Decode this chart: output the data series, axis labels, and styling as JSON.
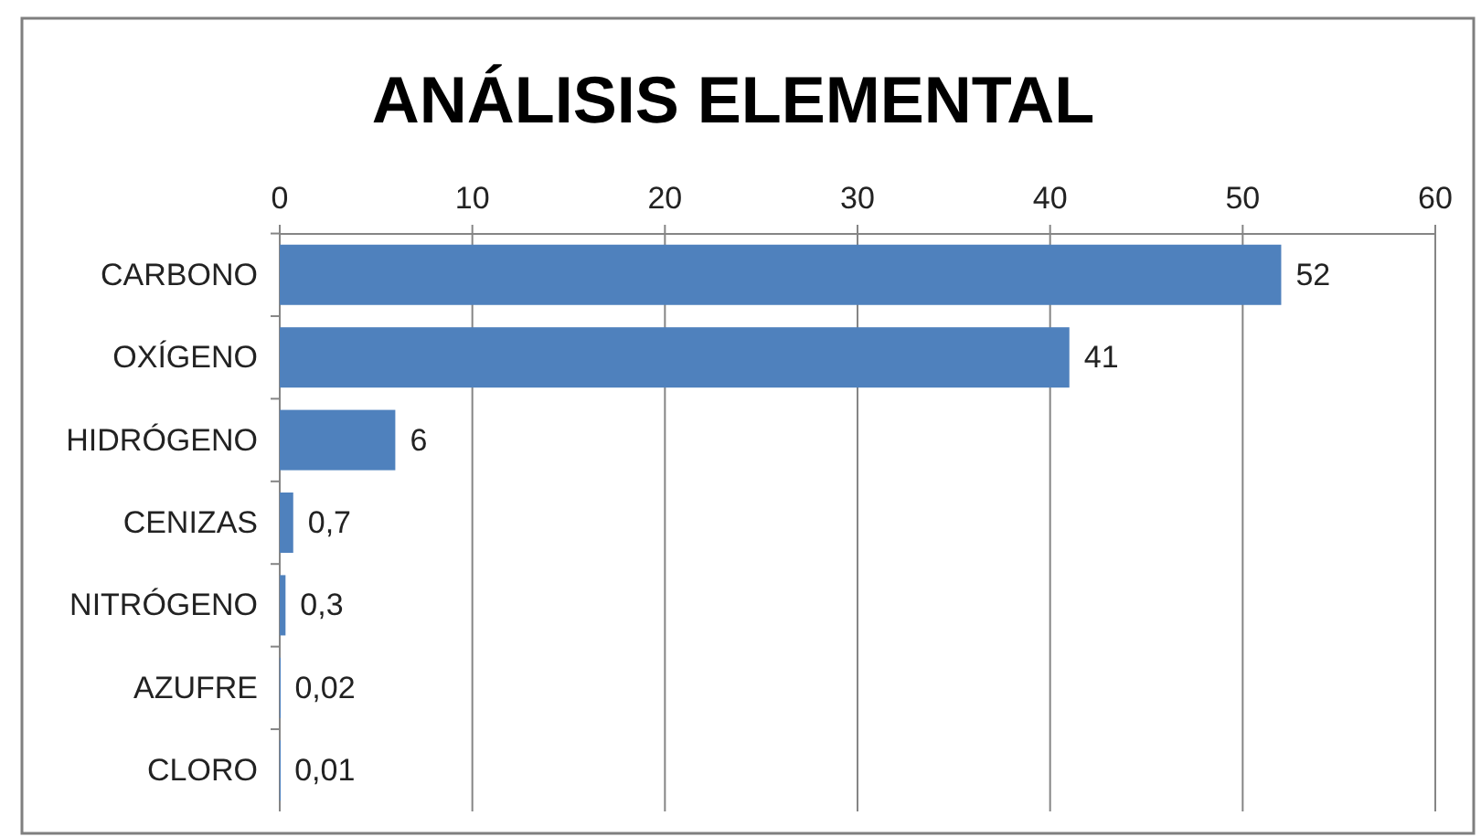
{
  "chart_data": {
    "type": "bar",
    "orientation": "horizontal",
    "title": "ANÁLISIS ELEMENTAL",
    "categories": [
      "CARBONO",
      "OXÍGENO",
      "HIDRÓGENO",
      "CENIZAS",
      "NITRÓGENO",
      "AZUFRE",
      "CLORO"
    ],
    "values": [
      52,
      41,
      6,
      0.7,
      0.3,
      0.02,
      0.01
    ],
    "value_labels": [
      "52",
      "41",
      "6",
      "0,7",
      "0,3",
      "0,02",
      "0,01"
    ],
    "color": "#4f81bd",
    "xlim": [
      0,
      60
    ],
    "xticks": [
      0,
      10,
      20,
      30,
      40,
      50,
      60
    ],
    "grid": "x"
  }
}
